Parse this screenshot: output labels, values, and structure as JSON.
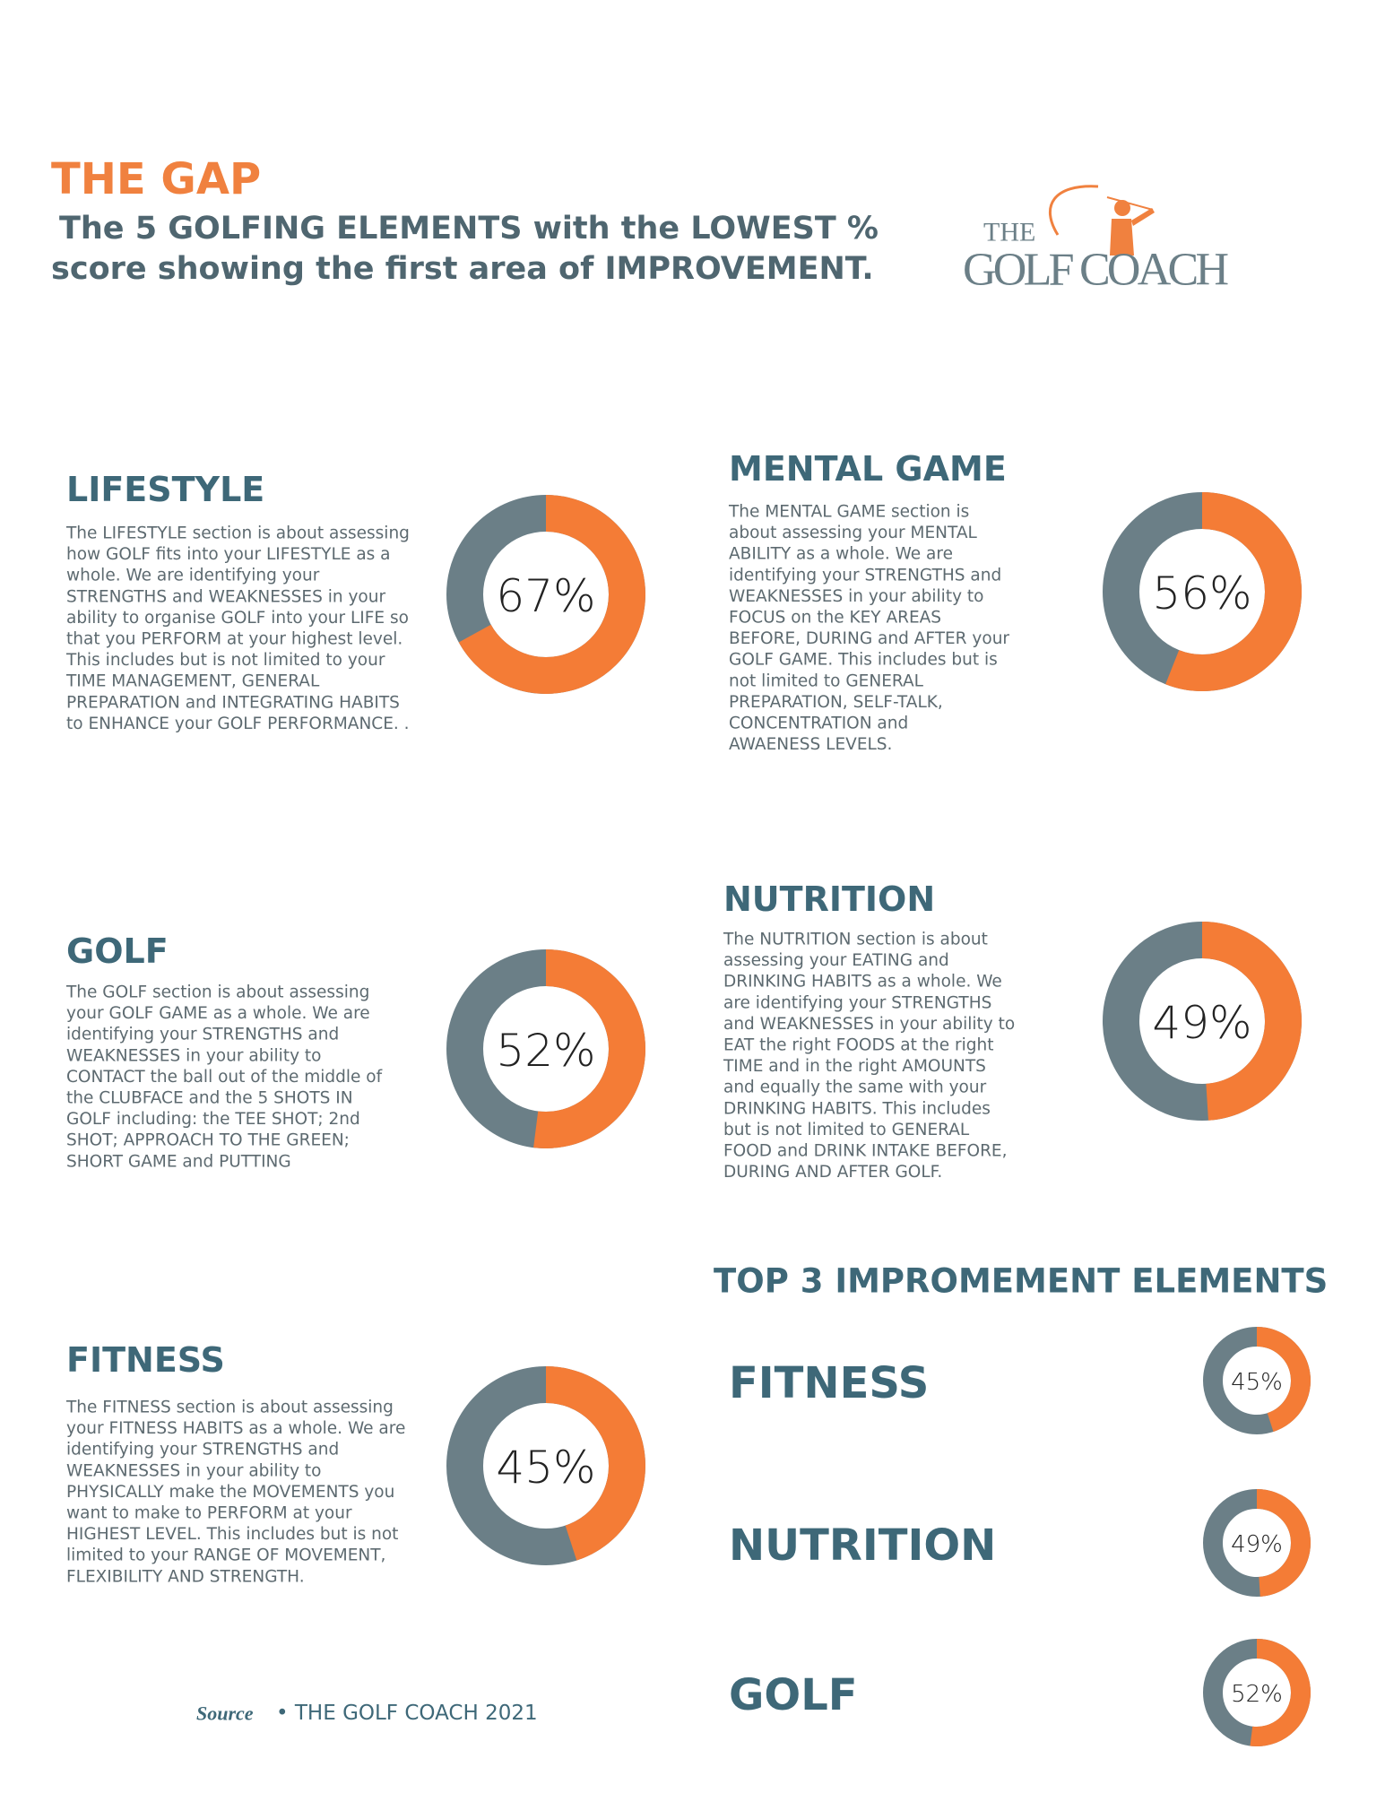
{
  "header": {
    "title": "THE GAP",
    "subtitle": [
      "The 5 GOLFING ELEMENTS with the LOWEST %",
      "score showing the first area of IMPROVEMENT."
    ]
  },
  "logo": {
    "line1": "THE",
    "line2": "GOLF COACH"
  },
  "colors": {
    "filled": "#f47c36",
    "remaining": "#6b7f87"
  },
  "sections": [
    {
      "title": "LIFESTYLE",
      "value": 67,
      "value_label": "67%",
      "text": [
        "The LIFESTYLE section is about assessing",
        "how GOLF fits into your LIFESTYLE as a",
        "whole. We are identifying your",
        "STRENGTHS and WEAKNESSES in your",
        "ability to organise GOLF into your LIFE so",
        "that you PERFORM at your highest level.",
        "This includes but is not limited to your",
        "TIME MANAGEMENT, GENERAL",
        "PREPARATION and INTEGRATING HABITS",
        "to ENHANCE your GOLF PERFORMANCE. ."
      ]
    },
    {
      "title": "MENTAL GAME",
      "value": 56,
      "value_label": "56%",
      "text": [
        "The MENTAL GAME section is",
        "about assessing your MENTAL",
        "ABILITY as a whole. We are",
        "identifying your STRENGTHS and",
        "WEAKNESSES in your ability to",
        "FOCUS on the KEY AREAS",
        "BEFORE, DURING and AFTER your",
        "GOLF GAME. This includes but is",
        "not limited to GENERAL",
        "PREPARATION, SELF-TALK,",
        "CONCENTRATION and",
        "AWAENESS LEVELS."
      ]
    },
    {
      "title": "GOLF",
      "value": 52,
      "value_label": "52%",
      "text": [
        "The GOLF section is about assessing",
        "your GOLF GAME as a whole. We are",
        "identifying your STRENGTHS and",
        "WEAKNESSES in your ability to",
        "CONTACT the ball out of the middle of",
        "the CLUBFACE and the 5 SHOTS IN",
        "GOLF including: the TEE SHOT; 2nd",
        "SHOT; APPROACH TO THE GREEN;",
        "SHORT GAME and PUTTING"
      ]
    },
    {
      "title": "NUTRITION",
      "value": 49,
      "value_label": "49%",
      "text": [
        "The NUTRITION section is about",
        "assessing your EATING and",
        "DRINKING HABITS as a whole. We",
        "are identifying your STRENGTHS",
        "and WEAKNESSES in your ability to",
        "EAT the right FOODS at the right",
        "TIME and in the right AMOUNTS",
        "and equally the same with your",
        "DRINKING HABITS. This includes",
        "but is not limited to GENERAL",
        "FOOD and DRINK INTAKE BEFORE,",
        "DURING AND AFTER GOLF."
      ]
    },
    {
      "title": "FITNESS",
      "value": 45,
      "value_label": "45%",
      "text": [
        "The FITNESS section is about assessing",
        "your FITNESS HABITS as a whole. We are",
        "identifying your STRENGTHS and",
        "WEAKNESSES in your ability to",
        "PHYSICALLY make the MOVEMENTS you",
        "want to make to PERFORM at your",
        "HIGHEST LEVEL. This includes but is not",
        "limited to your RANGE OF MOVEMENT,",
        "FLEXIBILITY AND STRENGTH."
      ]
    }
  ],
  "top3": {
    "title": "TOP 3 IMPROMEMENT ELEMENTS",
    "items": [
      {
        "name": "FITNESS",
        "value": 45,
        "value_label": "45%"
      },
      {
        "name": "NUTRITION",
        "value": 49,
        "value_label": "49%"
      },
      {
        "name": "GOLF",
        "value": 52,
        "value_label": "52%"
      }
    ]
  },
  "footer": {
    "source": "Source",
    "text": "• THE GOLF COACH 2021"
  }
}
